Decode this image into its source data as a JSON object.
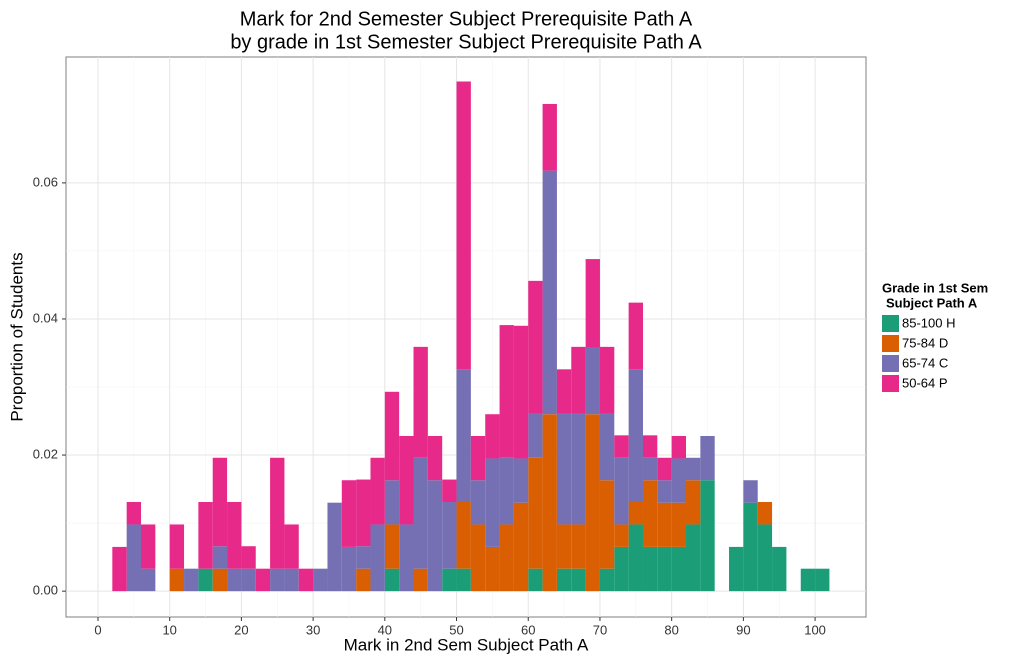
{
  "chart_data": {
    "type": "histogram",
    "title": "Mark for 2nd Semester Subject Prerequisite Path A",
    "subtitle": "by grade in 1st Semester Subject Prerequisite Path A",
    "x_label": "Mark in 2nd Sem Subject Path A",
    "y_label": "Proportion of Students",
    "legend_title": [
      "Grade in 1st Sem",
      "Subject Path A"
    ],
    "legend_position": "right",
    "stacked": true,
    "grid": true,
    "bins": [
      0,
      2,
      4,
      6,
      8,
      10,
      12,
      14,
      16,
      18,
      20,
      22,
      24,
      26,
      28,
      30,
      32,
      34,
      36,
      38,
      40,
      42,
      44,
      46,
      48,
      50,
      52,
      54,
      56,
      58,
      60,
      62,
      64,
      66,
      68,
      70,
      72,
      74,
      76,
      78,
      80,
      82,
      84,
      86,
      88,
      90,
      92,
      94,
      96,
      98,
      100,
      102
    ],
    "series": [
      {
        "name": "85-100 H",
        "color": "#1b9e77",
        "values": [
          0,
          0,
          0,
          0,
          0,
          0,
          0,
          0.0033,
          0,
          0,
          0,
          0,
          0,
          0,
          0,
          0,
          0,
          0,
          0,
          0,
          0.0033,
          0,
          0,
          0,
          0.0033,
          0.0033,
          0,
          0,
          0,
          0,
          0.0033,
          0,
          0.0033,
          0.0033,
          0,
          0.0033,
          0.0065,
          0.0098,
          0.0065,
          0.0065,
          0.0065,
          0.0098,
          0.0163,
          0,
          0.0065,
          0.013,
          0.0098,
          0.0065,
          0,
          0.0033,
          0.0033
        ]
      },
      {
        "name": "75-84 D",
        "color": "#d95f02",
        "values": [
          0,
          0,
          0,
          0,
          0,
          0.0033,
          0,
          0,
          0.0033,
          0,
          0,
          0,
          0,
          0,
          0,
          0,
          0,
          0,
          0.0033,
          0,
          0.0065,
          0,
          0.0033,
          0,
          0,
          0.0098,
          0.0098,
          0.0065,
          0.0098,
          0.013,
          0.0163,
          0.026,
          0.0065,
          0.0065,
          0.026,
          0.013,
          0.0033,
          0.0033,
          0.0098,
          0.0065,
          0.0065,
          0.0065,
          0,
          0,
          0,
          0,
          0.0033,
          0,
          0,
          0,
          0
        ]
      },
      {
        "name": "65-74 C",
        "color": "#7570b3",
        "values": [
          0,
          0,
          0.0098,
          0.0033,
          0,
          0,
          0.0033,
          0,
          0.0033,
          0.0033,
          0.0033,
          0,
          0.0033,
          0.0033,
          0,
          0.0033,
          0.013,
          0.0065,
          0.0033,
          0.0098,
          0.0065,
          0.0098,
          0.0163,
          0.0163,
          0.0098,
          0.0195,
          0.0065,
          0.013,
          0.0098,
          0.0065,
          0.0065,
          0.0358,
          0.0163,
          0.0163,
          0.0098,
          0.0098,
          0.0098,
          0.0195,
          0.0033,
          0.0033,
          0.0065,
          0.0033,
          0.0065,
          0,
          0,
          0.0033,
          0,
          0,
          0,
          0,
          0
        ]
      },
      {
        "name": "50-64 P",
        "color": "#e7298a",
        "values": [
          0,
          0.0065,
          0.0033,
          0.0065,
          0,
          0.0065,
          0,
          0.0098,
          0.013,
          0.0098,
          0.0033,
          0.0033,
          0.0163,
          0.0065,
          0.0033,
          0,
          0,
          0.0098,
          0.0098,
          0.0098,
          0.013,
          0.013,
          0.0163,
          0.0065,
          0.0033,
          0.0423,
          0.0065,
          0.0065,
          0.0195,
          0.0195,
          0.0195,
          0.0098,
          0.0065,
          0.0098,
          0.013,
          0.0098,
          0.0033,
          0.0098,
          0.0033,
          0.0033,
          0.0033,
          0,
          0,
          0,
          0,
          0,
          0,
          0,
          0,
          0,
          0
        ]
      }
    ],
    "xlim": [
      -4.46,
      107.1
    ],
    "ylim": [
      -0.0038,
      0.0785
    ],
    "xticks": [
      0,
      10,
      20,
      30,
      40,
      50,
      60,
      70,
      80,
      90,
      100
    ],
    "yticks": [
      {
        "value": 0,
        "label": "0.00"
      },
      {
        "value": 0.02,
        "label": "0.02"
      },
      {
        "value": 0.04,
        "label": "0.04"
      },
      {
        "value": 0.06,
        "label": "0.06"
      }
    ]
  }
}
